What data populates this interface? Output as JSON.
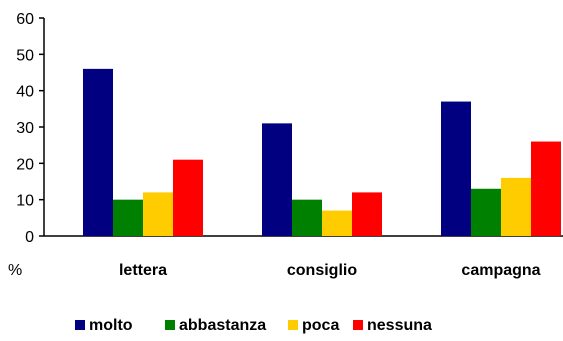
{
  "chart_data": {
    "type": "bar",
    "categories": [
      "lettera",
      "consiglio",
      "campagna"
    ],
    "series": [
      {
        "name": "molto",
        "values": [
          46,
          31,
          37
        ]
      },
      {
        "name": "abbastanza",
        "values": [
          10,
          10,
          13
        ]
      },
      {
        "name": "poca",
        "values": [
          12,
          7,
          16
        ]
      },
      {
        "name": "nessuna",
        "values": [
          21,
          12,
          26
        ]
      }
    ],
    "ylabel": "%",
    "ylim": [
      0,
      60
    ],
    "yticks": [
      0,
      10,
      20,
      30,
      40,
      50,
      60
    ],
    "grid": false,
    "legend_position": "bottom",
    "colors": [
      "#000080",
      "#008000",
      "#ffcc00",
      "#ff0000"
    ]
  }
}
